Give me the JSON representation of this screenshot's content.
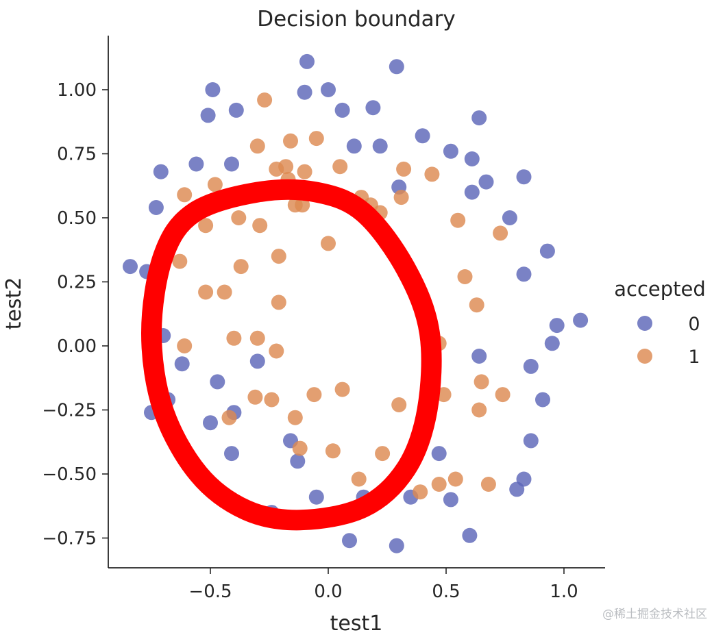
{
  "chart_data": {
    "type": "scatter",
    "title": "Decision boundary",
    "xlabel": "test1",
    "ylabel": "test2",
    "xlim": [
      -0.94,
      1.18
    ],
    "ylim": [
      -0.86,
      1.2
    ],
    "xticks": [
      -0.5,
      0.0,
      0.5,
      1.0
    ],
    "xtick_labels": [
      "−0.5",
      "0.0",
      "0.5",
      "1.0"
    ],
    "yticks": [
      -0.75,
      -0.5,
      -0.25,
      0.0,
      0.25,
      0.5,
      0.75,
      1.0
    ],
    "ytick_labels": [
      "−0.75",
      "−0.50",
      "−0.25",
      "0.00",
      "0.25",
      "0.50",
      "0.75",
      "1.00"
    ],
    "grid": false,
    "legend": {
      "title": "accepted",
      "placement": "right"
    },
    "series": [
      {
        "name": "0",
        "color": "#5d67b8",
        "points": [
          [
            -0.09,
            1.11
          ],
          [
            0.29,
            1.09
          ],
          [
            -0.49,
            1.0
          ],
          [
            -0.1,
            0.99
          ],
          [
            0.0,
            1.0
          ],
          [
            -0.51,
            0.9
          ],
          [
            -0.39,
            0.92
          ],
          [
            0.06,
            0.92
          ],
          [
            0.19,
            0.93
          ],
          [
            0.64,
            0.89
          ],
          [
            0.4,
            0.82
          ],
          [
            0.11,
            0.78
          ],
          [
            0.22,
            0.78
          ],
          [
            0.52,
            0.76
          ],
          [
            0.61,
            0.73
          ],
          [
            -0.71,
            0.68
          ],
          [
            -0.56,
            0.71
          ],
          [
            -0.41,
            0.71
          ],
          [
            0.67,
            0.64
          ],
          [
            0.83,
            0.66
          ],
          [
            0.3,
            0.62
          ],
          [
            0.61,
            0.6
          ],
          [
            -0.73,
            0.54
          ],
          [
            0.77,
            0.5
          ],
          [
            0.93,
            0.37
          ],
          [
            -0.84,
            0.31
          ],
          [
            -0.77,
            0.29
          ],
          [
            0.83,
            0.28
          ],
          [
            1.07,
            0.1
          ],
          [
            0.97,
            0.08
          ],
          [
            0.95,
            0.01
          ],
          [
            -0.7,
            0.04
          ],
          [
            0.64,
            -0.04
          ],
          [
            -0.62,
            -0.07
          ],
          [
            -0.3,
            -0.06
          ],
          [
            -0.74,
            -0.09
          ],
          [
            0.86,
            -0.08
          ],
          [
            -0.47,
            -0.14
          ],
          [
            -0.68,
            -0.21
          ],
          [
            0.91,
            -0.21
          ],
          [
            -0.75,
            -0.26
          ],
          [
            -0.4,
            -0.26
          ],
          [
            -0.5,
            -0.3
          ],
          [
            -0.16,
            -0.37
          ],
          [
            0.86,
            -0.37
          ],
          [
            -0.41,
            -0.42
          ],
          [
            0.47,
            -0.42
          ],
          [
            -0.13,
            -0.45
          ],
          [
            0.83,
            -0.52
          ],
          [
            -0.05,
            -0.59
          ],
          [
            0.15,
            -0.59
          ],
          [
            0.35,
            -0.59
          ],
          [
            0.8,
            -0.56
          ],
          [
            0.52,
            -0.6
          ],
          [
            -0.24,
            -0.65
          ],
          [
            0.09,
            -0.76
          ],
          [
            0.29,
            -0.78
          ],
          [
            0.6,
            -0.74
          ]
        ]
      },
      {
        "name": "1",
        "color": "#dd8a52",
        "points": [
          [
            -0.27,
            0.96
          ],
          [
            -0.3,
            0.78
          ],
          [
            -0.16,
            0.8
          ],
          [
            -0.05,
            0.81
          ],
          [
            -0.22,
            0.69
          ],
          [
            -0.18,
            0.7
          ],
          [
            -0.1,
            0.68
          ],
          [
            0.05,
            0.7
          ],
          [
            0.32,
            0.69
          ],
          [
            0.44,
            0.67
          ],
          [
            -0.48,
            0.63
          ],
          [
            -0.61,
            0.59
          ],
          [
            -0.17,
            0.65
          ],
          [
            0.14,
            0.58
          ],
          [
            0.31,
            0.58
          ],
          [
            0.18,
            0.55
          ],
          [
            0.22,
            0.52
          ],
          [
            -0.14,
            0.55
          ],
          [
            -0.11,
            0.55
          ],
          [
            -0.38,
            0.5
          ],
          [
            -0.52,
            0.47
          ],
          [
            -0.29,
            0.47
          ],
          [
            0.55,
            0.49
          ],
          [
            0.73,
            0.44
          ],
          [
            0.0,
            0.4
          ],
          [
            -0.63,
            0.33
          ],
          [
            -0.37,
            0.31
          ],
          [
            -0.21,
            0.35
          ],
          [
            0.58,
            0.27
          ],
          [
            -0.52,
            0.21
          ],
          [
            -0.44,
            0.21
          ],
          [
            -0.21,
            0.17
          ],
          [
            0.63,
            0.16
          ],
          [
            -0.61,
            0.0
          ],
          [
            -0.4,
            0.03
          ],
          [
            -0.3,
            0.03
          ],
          [
            -0.22,
            -0.02
          ],
          [
            0.47,
            0.01
          ],
          [
            0.65,
            -0.14
          ],
          [
            -0.31,
            -0.2
          ],
          [
            -0.24,
            -0.21
          ],
          [
            -0.06,
            -0.19
          ],
          [
            0.06,
            -0.17
          ],
          [
            0.49,
            -0.19
          ],
          [
            0.74,
            -0.19
          ],
          [
            -0.42,
            -0.28
          ],
          [
            -0.14,
            -0.28
          ],
          [
            0.3,
            -0.23
          ],
          [
            0.64,
            -0.25
          ],
          [
            -0.12,
            -0.4
          ],
          [
            0.02,
            -0.41
          ],
          [
            0.23,
            -0.42
          ],
          [
            0.13,
            -0.52
          ],
          [
            0.54,
            -0.52
          ],
          [
            0.47,
            -0.54
          ],
          [
            0.68,
            -0.54
          ],
          [
            0.39,
            -0.57
          ]
        ]
      }
    ],
    "annotation": {
      "shape": "hand-drawn closed loop",
      "color": "#ff0000",
      "path": [
        [
          -0.3,
          0.6
        ],
        [
          -0.05,
          0.6
        ],
        [
          0.15,
          0.52
        ],
        [
          0.33,
          0.3
        ],
        [
          0.43,
          0.05
        ],
        [
          0.42,
          -0.25
        ],
        [
          0.33,
          -0.48
        ],
        [
          0.15,
          -0.63
        ],
        [
          -0.12,
          -0.68
        ],
        [
          -0.35,
          -0.64
        ],
        [
          -0.55,
          -0.5
        ],
        [
          -0.7,
          -0.25
        ],
        [
          -0.75,
          0.05
        ],
        [
          -0.7,
          0.35
        ],
        [
          -0.57,
          0.52
        ]
      ]
    }
  },
  "watermark": "@稀土掘金技术社区"
}
